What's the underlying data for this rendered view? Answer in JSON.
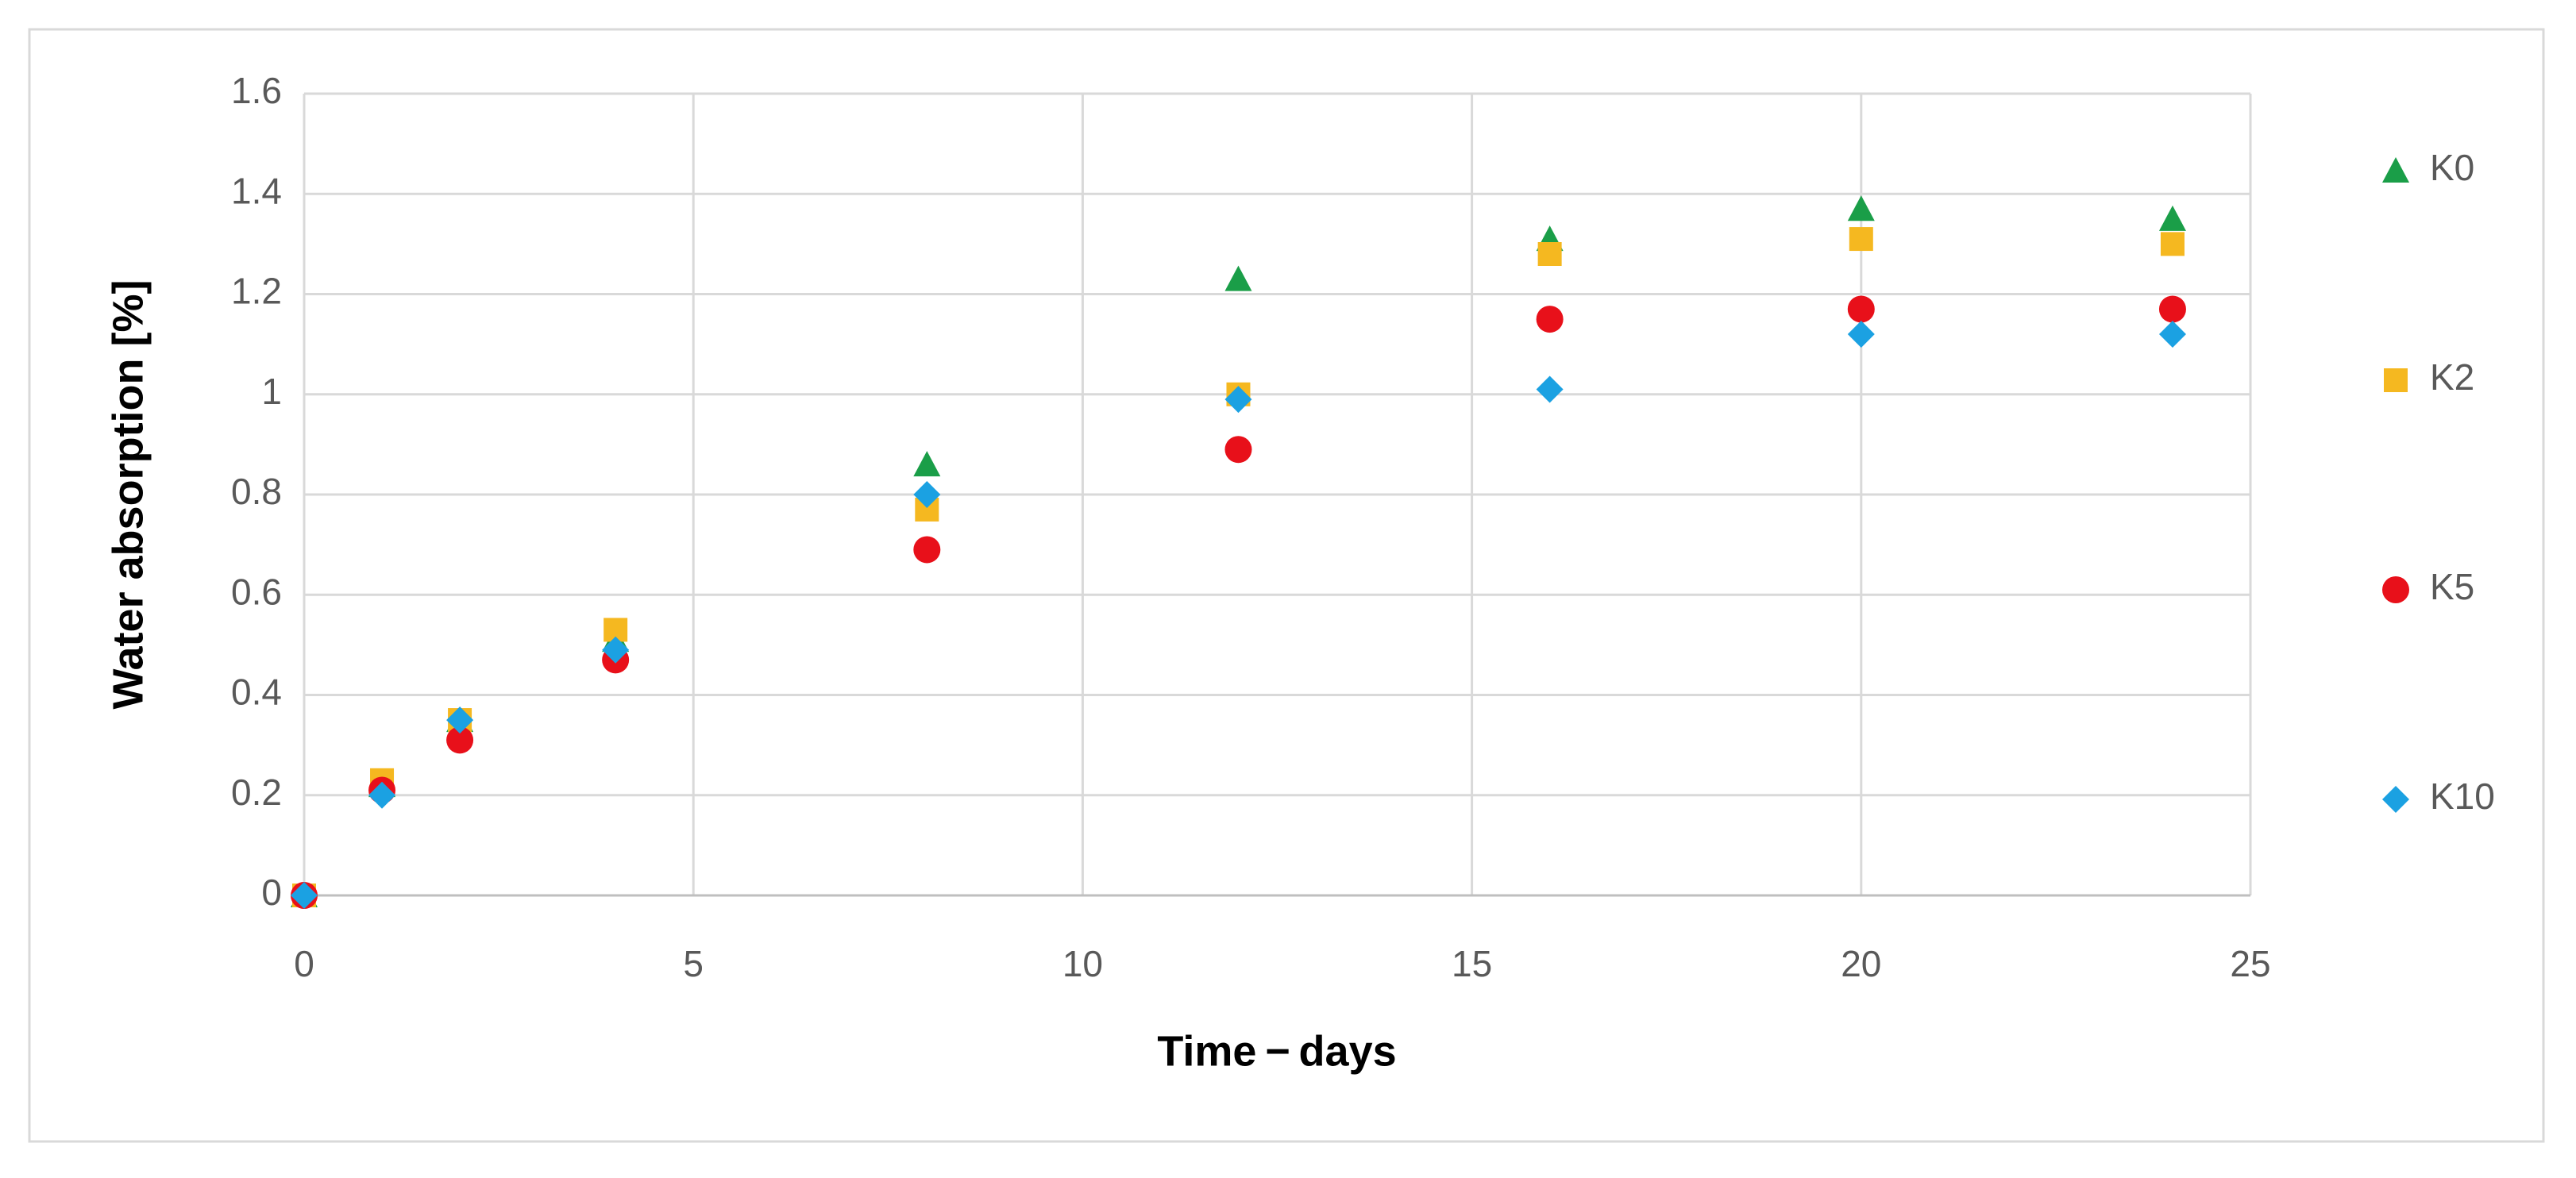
{
  "chart_data": {
    "type": "scatter",
    "x_label": "Time − days",
    "y_label": "Water absorption [%]",
    "xlim": [
      0,
      25
    ],
    "xticks": [
      0,
      5,
      10,
      15,
      20,
      25
    ],
    "ylim": [
      0,
      1.6
    ],
    "yticks": [
      0,
      0.2,
      0.4,
      0.6,
      0.8,
      1,
      1.2,
      1.4,
      1.6
    ],
    "grid": true,
    "legend": "right",
    "x": [
      0,
      1,
      2,
      4,
      8,
      12,
      16,
      20,
      24
    ],
    "series": [
      {
        "name": "K0",
        "color": "#1a9e48",
        "marker": "triangle",
        "values": [
          0,
          0.22,
          0.35,
          0.51,
          0.86,
          1.23,
          1.31,
          1.37,
          1.35
        ]
      },
      {
        "name": "K2",
        "color": "#f5b820",
        "marker": "square",
        "values": [
          0,
          0.23,
          0.35,
          0.53,
          0.77,
          1.0,
          1.28,
          1.31,
          1.3
        ]
      },
      {
        "name": "K5",
        "color": "#e8101a",
        "marker": "circle",
        "values": [
          0,
          0.21,
          0.31,
          0.47,
          0.69,
          0.89,
          1.15,
          1.17,
          1.17
        ]
      },
      {
        "name": "K10",
        "color": "#1ba1e2",
        "marker": "diamond",
        "values": [
          0,
          0.2,
          0.35,
          0.49,
          0.8,
          0.99,
          1.01,
          1.12,
          1.12
        ]
      }
    ]
  }
}
